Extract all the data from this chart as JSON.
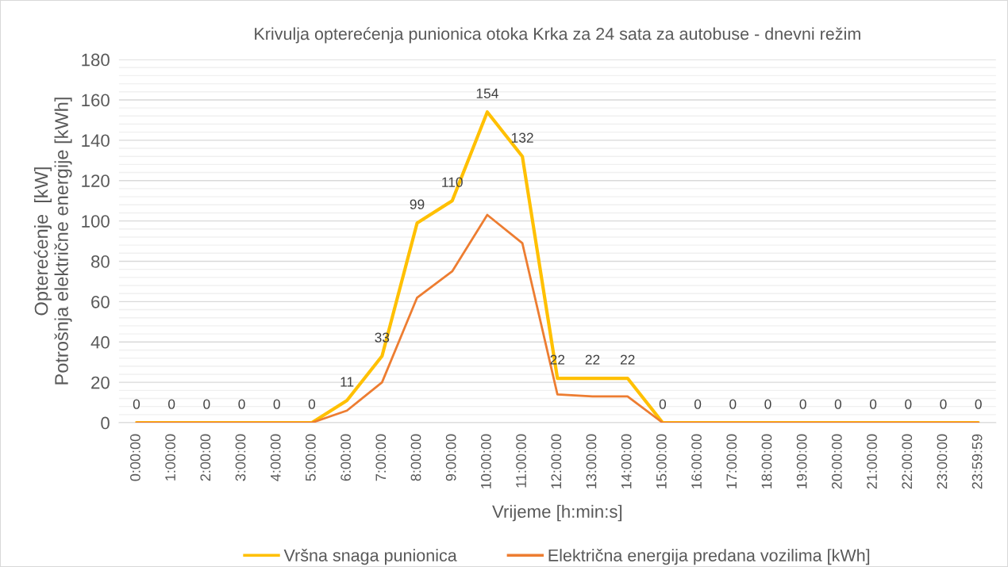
{
  "chart_data": {
    "type": "line",
    "title": "Krivulja opterećenja punionica otoka Krka za 24 sata za autobuse - dnevni režim",
    "xlabel": "Vrijeme [h:min:s]",
    "ylabel": "Opterećenje  [kW]\nPotrošnja električne energije [kWh]",
    "categories": [
      "0:00:00",
      "1:00:00",
      "2:00:00",
      "3:00:00",
      "4:00:00",
      "5:00:00",
      "6:00:00",
      "7:00:00",
      "8:00:00",
      "9:00:00",
      "10:00:00",
      "11:00:00",
      "12:00:00",
      "13:00:00",
      "14:00:00",
      "15:00:00",
      "16:00:00",
      "17:00:00",
      "18:00:00",
      "19:00:00",
      "20:00:00",
      "21:00:00",
      "22:00:00",
      "23:00:00",
      "23:59:59"
    ],
    "series": [
      {
        "name": "Vršna snaga punionica",
        "color": "#ffc000",
        "data_labels": true,
        "values": [
          0,
          0,
          0,
          0,
          0,
          0,
          11,
          33,
          99,
          110,
          154,
          132,
          22,
          22,
          22,
          0,
          0,
          0,
          0,
          0,
          0,
          0,
          0,
          0,
          0
        ]
      },
      {
        "name": "Električna energija predana vozilima [kWh]",
        "color": "#ed7d31",
        "values": [
          0,
          0,
          0,
          0,
          0,
          0,
          6,
          20,
          62,
          75,
          103,
          89,
          14,
          13,
          13,
          0,
          0,
          0,
          0,
          0,
          0,
          0,
          0,
          0,
          0
        ]
      }
    ],
    "ylim": [
      0,
      180
    ],
    "yticks": [
      0,
      20,
      40,
      60,
      80,
      100,
      120,
      140,
      160,
      180
    ],
    "grid": "y",
    "legend": "bottom",
    "marker": "none",
    "line_style": "solid"
  }
}
